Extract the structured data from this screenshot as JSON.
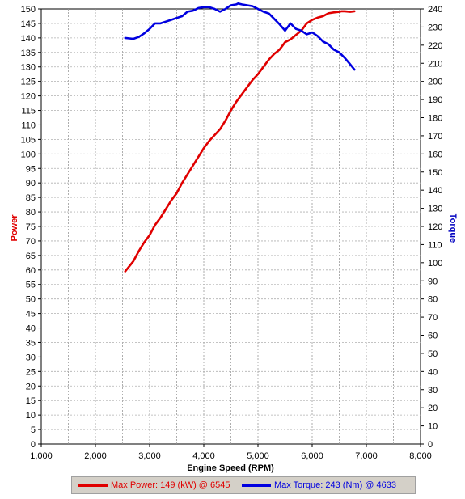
{
  "chart_data": {
    "type": "line",
    "xlabel": "Engine Speed (RPM)",
    "ylabel_left": "Power",
    "ylabel_right": "Torque",
    "xlim": [
      1000,
      8000
    ],
    "ylim_left": [
      0,
      150
    ],
    "ylim_right": [
      0,
      240
    ],
    "x_ticks": [
      "1,000",
      "2,000",
      "3,000",
      "4,000",
      "5,000",
      "6,000",
      "7,000",
      "8,000"
    ],
    "grid": true,
    "colors": {
      "power": "#e00000",
      "torque": "#0000e0",
      "plot_bg": "#ffffff",
      "legend_bg": "#d4d0c8"
    },
    "series": [
      {
        "name": "Max Power",
        "axis": "left",
        "x": [
          2550,
          2700,
          2800,
          2900,
          3000,
          3100,
          3200,
          3300,
          3400,
          3500,
          3600,
          3700,
          3800,
          3900,
          4000,
          4100,
          4200,
          4300,
          4400,
          4500,
          4600,
          4700,
          4800,
          4900,
          5000,
          5100,
          5200,
          5300,
          5400,
          5500,
          5600,
          5700,
          5800,
          5900,
          6000,
          6100,
          6200,
          6300,
          6400,
          6500,
          6545,
          6600,
          6700,
          6780
        ],
        "y": [
          59.5,
          63,
          66.5,
          69.5,
          72,
          75.5,
          78,
          81,
          84,
          86.5,
          90,
          93,
          96,
          99,
          102,
          104.5,
          106.5,
          108.5,
          111.5,
          115,
          118,
          120.5,
          123,
          125.5,
          127.5,
          130,
          132.5,
          134.5,
          136,
          138.5,
          139.5,
          141,
          142.5,
          145,
          146.2,
          147,
          147.5,
          148.5,
          148.8,
          149,
          149.2,
          149.2,
          149,
          149.2
        ]
      },
      {
        "name": "Max Torque",
        "axis": "right",
        "x": [
          2550,
          2700,
          2800,
          2900,
          3000,
          3100,
          3200,
          3300,
          3400,
          3500,
          3600,
          3700,
          3800,
          3900,
          4000,
          4100,
          4200,
          4300,
          4400,
          4500,
          4600,
          4633,
          4700,
          4800,
          4900,
          5000,
          5100,
          5200,
          5300,
          5400,
          5500,
          5600,
          5700,
          5800,
          5900,
          6000,
          6100,
          6200,
          6300,
          6400,
          6500,
          6600,
          6700,
          6780
        ],
        "y": [
          224,
          223.5,
          224.5,
          226.5,
          229,
          232,
          232,
          233,
          234,
          235,
          236,
          238.5,
          239,
          240.5,
          241,
          241,
          240,
          238.5,
          240,
          242,
          242.5,
          243,
          242.5,
          242,
          241.5,
          240,
          238.5,
          237.5,
          234.5,
          231.5,
          228,
          232,
          229,
          228,
          226,
          227,
          225,
          222,
          220.5,
          217.5,
          216,
          213,
          209.5,
          206.5
        ]
      }
    ]
  },
  "legend": {
    "power_label": "Max Power: 149 (kW) @ 6545",
    "torque_label": "Max Torque: 243 (Nm) @ 4633"
  }
}
